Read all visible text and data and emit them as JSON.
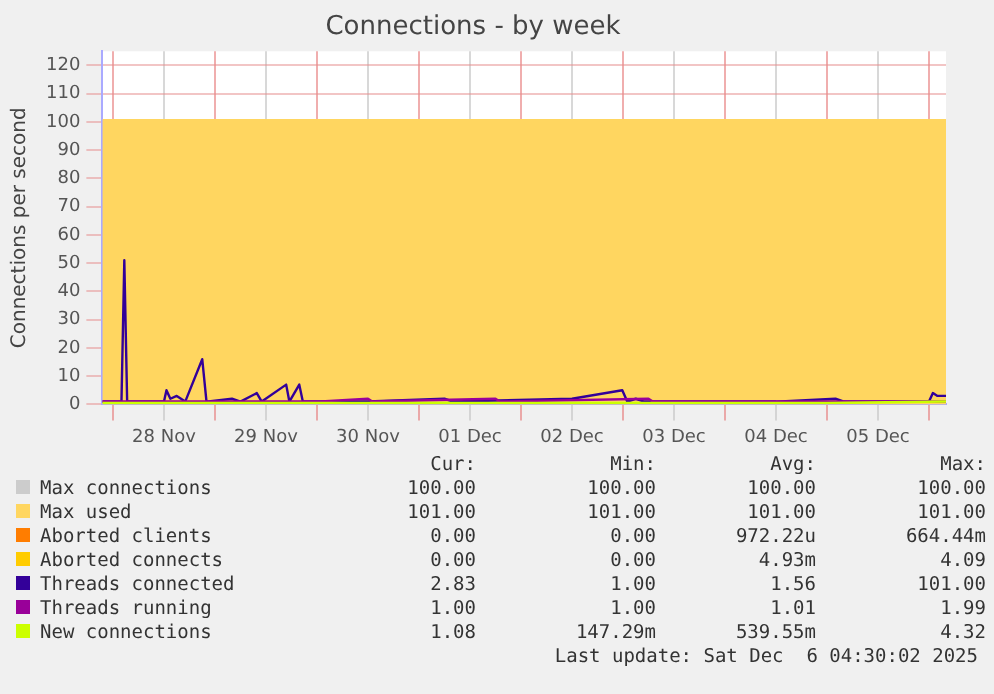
{
  "chart_data": {
    "type": "line",
    "title": "Connections - by week",
    "ylabel": "Connections per second",
    "xlim": [
      "2025-11-27T21:30",
      "2025-12-06T04:00"
    ],
    "xticks": [
      {
        "value": "2025-11-28T00:00",
        "label": null
      },
      {
        "value": "2025-11-28T12:00",
        "label": "28 Nov"
      },
      {
        "value": "2025-11-29T00:00",
        "label": null
      },
      {
        "value": "2025-11-29T12:00",
        "label": "29 Nov"
      },
      {
        "value": "2025-11-30T00:00",
        "label": null
      },
      {
        "value": "2025-11-30T12:00",
        "label": "30 Nov"
      },
      {
        "value": "2025-12-01T00:00",
        "label": null
      },
      {
        "value": "2025-12-01T12:00",
        "label": "01 Dec"
      },
      {
        "value": "2025-12-02T00:00",
        "label": null
      },
      {
        "value": "2025-12-02T12:00",
        "label": "02 Dec"
      },
      {
        "value": "2025-12-03T00:00",
        "label": null
      },
      {
        "value": "2025-12-03T12:00",
        "label": "03 Dec"
      },
      {
        "value": "2025-12-04T00:00",
        "label": null
      },
      {
        "value": "2025-12-04T12:00",
        "label": "04 Dec"
      },
      {
        "value": "2025-12-05T00:00",
        "label": null
      },
      {
        "value": "2025-12-05T12:00",
        "label": "05 Dec"
      },
      {
        "value": "2025-12-06T00:00",
        "label": null
      }
    ],
    "ylim": [
      0,
      125
    ],
    "yticks": [
      0,
      10,
      20,
      30,
      40,
      50,
      60,
      70,
      80,
      90,
      100,
      110,
      120
    ],
    "grid": true,
    "legend": "bottom",
    "marker": "none",
    "line_style": "solid",
    "series": [
      {
        "name": "Max connections",
        "color": "#cccccc"
      },
      {
        "name": "Max used",
        "type": "area",
        "color": "#ffd660",
        "x": [
          "2025-11-27T21:30",
          "2025-12-06T04:00"
        ],
        "values": [
          101,
          101
        ]
      },
      {
        "name": "Aborted clients",
        "color": "#ff7d00"
      },
      {
        "name": "Aborted connects",
        "color": "#ffcc00"
      },
      {
        "name": "Threads connected",
        "color": "#330099",
        "x": [
          "2025-11-27T21:30",
          "2025-11-28T02:00",
          "2025-11-28T02:40",
          "2025-11-28T03:20",
          "2025-11-28T12:00",
          "2025-11-28T12:35",
          "2025-11-28T13:30",
          "2025-11-28T15:00",
          "2025-11-28T17:00",
          "2025-11-28T21:00",
          "2025-11-28T22:00",
          "2025-11-29T04:00",
          "2025-11-29T06:00",
          "2025-11-29T09:50",
          "2025-11-29T11:00",
          "2025-11-29T16:45",
          "2025-11-29T17:30",
          "2025-11-29T19:50",
          "2025-11-29T20:40",
          "2025-11-30T12:00",
          "2025-12-01T06:00",
          "2025-12-01T08:00",
          "2025-12-02T12:00",
          "2025-12-02T23:50",
          "2025-12-03T01:00",
          "2025-12-03T03:00",
          "2025-12-03T05:00",
          "2025-12-04T12:00",
          "2025-12-05T02:00",
          "2025-12-05T04:00",
          "2025-12-06T00:00",
          "2025-12-06T00:55",
          "2025-12-06T02:00",
          "2025-12-06T04:00"
        ],
        "values": [
          1,
          1,
          51,
          1,
          1,
          5,
          2,
          3,
          1,
          16,
          1,
          2,
          1,
          4,
          1,
          7,
          1,
          7,
          1,
          1,
          2,
          1,
          2,
          5,
          1,
          2,
          1,
          1,
          2,
          1,
          1,
          4,
          3,
          3
        ]
      },
      {
        "name": "Threads running",
        "color": "#990099",
        "x": [
          "2025-11-27T21:30",
          "2025-11-30T00:00",
          "2025-11-30T12:00",
          "2025-11-30T13:00",
          "2025-12-01T18:00",
          "2025-12-01T19:00",
          "2025-12-03T06:00",
          "2025-12-03T07:00",
          "2025-12-05T12:00",
          "2025-12-06T04:00"
        ],
        "values": [
          1,
          1,
          2,
          1,
          2,
          1,
          2,
          1,
          1,
          1
        ]
      },
      {
        "name": "New connections",
        "color": "#ccff00",
        "x": [
          "2025-11-27T21:30",
          "2025-11-29T00:00",
          "2025-12-02T00:00",
          "2025-12-05T00:00",
          "2025-12-06T04:00"
        ],
        "values": [
          0.5,
          0.5,
          0.5,
          0.5,
          1
        ]
      }
    ],
    "annotations": [
      "Cur:",
      "Min:",
      "Avg:",
      "Max:",
      "100.00",
      "100.00",
      "100.00",
      "100.00",
      "101.00",
      "101.00",
      "101.00",
      "101.00",
      "0.00",
      "0.00",
      "972.22u",
      "664.44m",
      "0.00",
      "0.00",
      "4.93m",
      "4.09",
      "2.83",
      "1.00",
      "1.56",
      "101.00",
      "1.00",
      "1.00",
      "1.01",
      "1.99",
      "1.08",
      "147.29m",
      "539.55m",
      "4.32",
      "Last update: Sat Dec  6 04:30:02 2025"
    ]
  }
}
